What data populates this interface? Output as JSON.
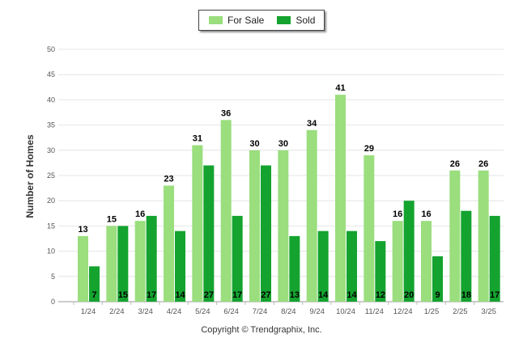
{
  "chart_data": {
    "type": "bar",
    "ylabel": "Number of Homes",
    "ylim": [
      0,
      50
    ],
    "yticks": [
      0,
      5,
      10,
      15,
      20,
      25,
      30,
      35,
      40,
      45,
      50
    ],
    "grid": true,
    "legend_position": "top-center",
    "categories": [
      "1/24",
      "2/24",
      "3/24",
      "4/24",
      "5/24",
      "6/24",
      "7/24",
      "8/24",
      "9/24",
      "10/24",
      "11/24",
      "12/24",
      "1/25",
      "2/25",
      "3/25"
    ],
    "series": [
      {
        "name": "For Sale",
        "color": "#9ade7e",
        "label_position": "top",
        "values": [
          13,
          15,
          16,
          23,
          31,
          36,
          30,
          30,
          34,
          41,
          29,
          16,
          16,
          26,
          26
        ]
      },
      {
        "name": "Sold",
        "color": "#14a32f",
        "label_position": "bottom",
        "values": [
          7,
          15,
          17,
          14,
          27,
          17,
          27,
          13,
          14,
          14,
          12,
          20,
          9,
          18,
          17
        ]
      }
    ]
  },
  "footer": {
    "copyright": "Copyright © Trendgraphix, Inc."
  }
}
